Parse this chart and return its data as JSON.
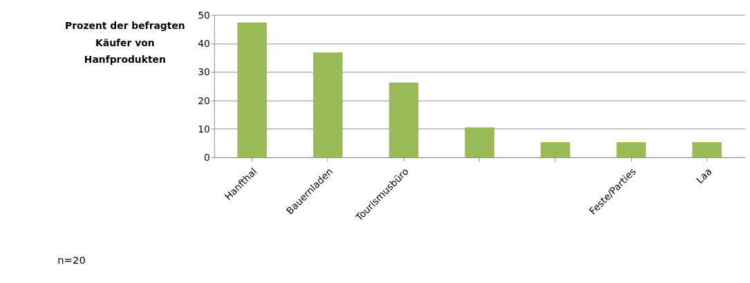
{
  "chart_data": {
    "type": "bar",
    "ylabel": "Prozent der befragten Käufer von Hanfprodukten",
    "categories": [
      "Hanfthal",
      "Bauernladen",
      "Tourismusbüro",
      null,
      null,
      "Feste/Parties",
      "Laa"
    ],
    "values": [
      47.4,
      36.8,
      26.3,
      10.5,
      5.3,
      5.3,
      5.3
    ],
    "color": "#9bbb59",
    "ylim": [
      0,
      50
    ],
    "yticks": [
      0,
      10,
      20,
      30,
      40,
      50
    ],
    "grid": "y",
    "annotations": [
      "n=20"
    ]
  }
}
